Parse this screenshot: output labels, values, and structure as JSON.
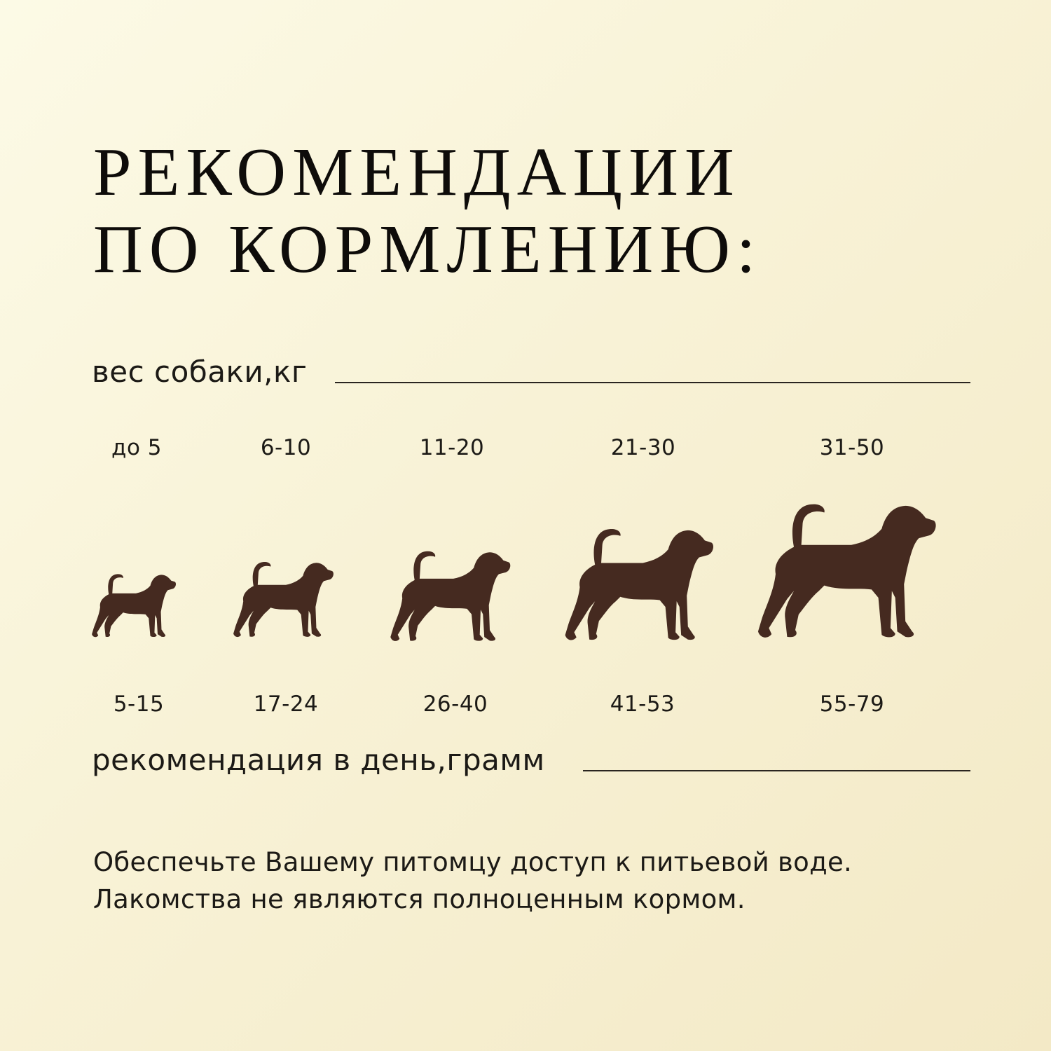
{
  "title": {
    "line1": "РЕКОМЕНДАЦИИ",
    "line2": "ПО КОРМЛЕНИЮ:"
  },
  "weight_label": "вес собаки,кг",
  "portion_label": "рекомендация в день,грамм",
  "columns": [
    {
      "weight": "до 5",
      "grams": "5-15"
    },
    {
      "weight": "6-10",
      "grams": "17-24"
    },
    {
      "weight": "11-20",
      "grams": "26-40"
    },
    {
      "weight": "21-30",
      "grams": "41-53"
    },
    {
      "weight": "31-50",
      "grams": "55-79"
    }
  ],
  "notes": [
    "Обеспечьте Вашему питомцу доступ к питьевой воде.",
    "Лакомства не являются полноценным кормом."
  ],
  "icons": {
    "dog": "dog-silhouette-icon"
  },
  "colors": {
    "dog": "#452a20",
    "background": "#f8f2d6",
    "text": "#1c1a16"
  }
}
